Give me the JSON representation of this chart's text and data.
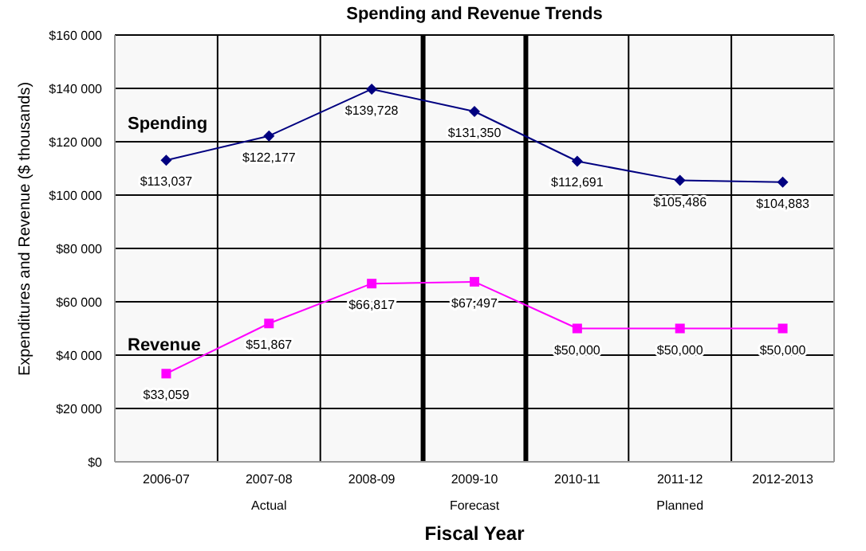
{
  "chart_data": {
    "type": "line",
    "title": "Spending and Revenue Trends",
    "xlabel": "Fiscal Year",
    "ylabel": "Expenditures and Revenue ($ thousands)",
    "categories": [
      "2006-07",
      "2007-08",
      "2008-09",
      "2009-10",
      "2010-11",
      "2011-12",
      "2012-2013"
    ],
    "series": [
      {
        "name": "Spending",
        "color": "#000080",
        "marker": "diamond",
        "values": [
          113037,
          122177,
          139728,
          131350,
          112691,
          105486,
          104883
        ],
        "value_labels": [
          "$113,037",
          "$122,177",
          "$139,728",
          "$131,350",
          "$112,691",
          "$105,486",
          "$104,883"
        ]
      },
      {
        "name": "Revenue",
        "color": "#ff00ff",
        "marker": "square",
        "values": [
          33059,
          51867,
          66817,
          67497,
          50000,
          50000,
          50000
        ],
        "value_labels": [
          "$33,059",
          "$51,867",
          "$66,817",
          "$67,497",
          "$50,000",
          "$50,000",
          "$50,000"
        ]
      }
    ],
    "ylim": [
      0,
      160000
    ],
    "yticks": [
      {
        "value": 0,
        "label": "$0"
      },
      {
        "value": 20000,
        "label": "$20 000"
      },
      {
        "value": 40000,
        "label": "$40 000"
      },
      {
        "value": 60000,
        "label": "$60 000"
      },
      {
        "value": 80000,
        "label": "$80 000"
      },
      {
        "value": 100000,
        "label": "$100 000"
      },
      {
        "value": 120000,
        "label": "$120 000"
      },
      {
        "value": 140000,
        "label": "$140 000"
      },
      {
        "value": 160000,
        "label": "$160 000"
      }
    ],
    "bands": [
      {
        "axis": "x",
        "from": "2006-07",
        "to": "2008-09",
        "label": "Actual"
      },
      {
        "axis": "x",
        "from": "2009-10",
        "to": "2009-10",
        "label": "Forecast"
      },
      {
        "axis": "x",
        "from": "2010-11",
        "to": "2012-2013",
        "label": "Planned"
      }
    ],
    "grid": true,
    "legend": false
  }
}
